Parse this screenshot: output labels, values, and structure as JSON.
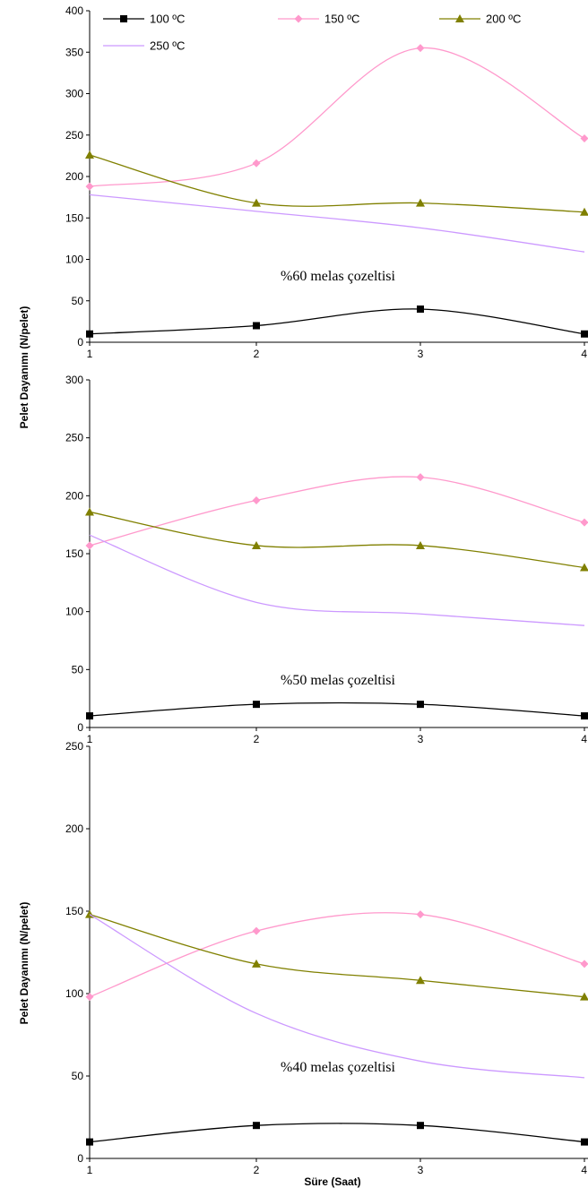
{
  "chart_data": [
    {
      "type": "line",
      "annotation": "%60 melas çozeltisi",
      "x": [
        1,
        2,
        3,
        4
      ],
      "ylim": [
        0,
        400
      ],
      "yticks": [
        0,
        50,
        100,
        150,
        200,
        250,
        300,
        350,
        400
      ],
      "series": [
        {
          "name": "100 ºC",
          "values": [
            10,
            20,
            40,
            10
          ]
        },
        {
          "name": "150 ºC",
          "values": [
            188,
            216,
            355,
            246
          ]
        },
        {
          "name": "200 ºC",
          "values": [
            226,
            168,
            168,
            157
          ]
        },
        {
          "name": "250 ºC",
          "values": [
            178,
            158,
            138,
            109
          ]
        }
      ]
    },
    {
      "type": "line",
      "annotation": "%50 melas çozeltisi",
      "x": [
        1,
        2,
        3,
        4
      ],
      "ylim": [
        0,
        300
      ],
      "yticks": [
        0,
        50,
        100,
        150,
        200,
        250,
        300
      ],
      "series": [
        {
          "name": "100 ºC",
          "values": [
            10,
            20,
            20,
            10
          ]
        },
        {
          "name": "150 ºC",
          "values": [
            157,
            196,
            216,
            177
          ]
        },
        {
          "name": "200 ºC",
          "values": [
            186,
            157,
            157,
            138
          ]
        },
        {
          "name": "250 ºC",
          "values": [
            166,
            108,
            98,
            88
          ]
        }
      ]
    },
    {
      "type": "line",
      "annotation": "%40 melas çozeltisi",
      "x": [
        1,
        2,
        3,
        4
      ],
      "ylim": [
        0,
        250
      ],
      "yticks": [
        0,
        50,
        100,
        150,
        200,
        250
      ],
      "series": [
        {
          "name": "100 ºC",
          "values": [
            10,
            20,
            20,
            10
          ]
        },
        {
          "name": "150 ºC",
          "values": [
            98,
            138,
            148,
            118
          ]
        },
        {
          "name": "200 ºC",
          "values": [
            148,
            118,
            108,
            98
          ]
        },
        {
          "name": "250 ºC",
          "values": [
            148,
            88,
            59,
            49
          ]
        }
      ]
    }
  ],
  "ylabel": "Pelet Dayanımı (N/pelet)",
  "xlabel": "Süre (Saat)",
  "legend": {
    "placement": "top",
    "items": [
      {
        "name": "100 ºC",
        "color": "#000000",
        "marker": "square"
      },
      {
        "name": "150 ºC",
        "color": "#ff99cc",
        "marker": "diamond"
      },
      {
        "name": "200 ºC",
        "color": "#808000",
        "marker": "triangle"
      },
      {
        "name": "250 ºC",
        "color": "#cc99ff",
        "marker": "none"
      }
    ]
  }
}
